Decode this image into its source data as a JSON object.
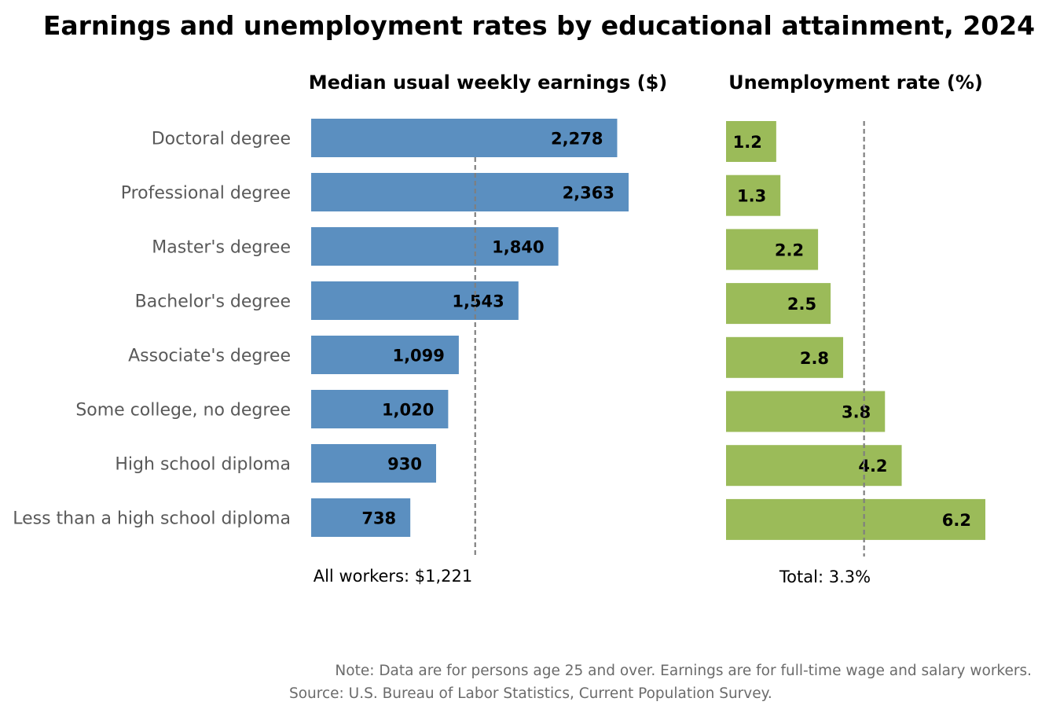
{
  "title": "Earnings and unemployment rates by educational attainment, 2024",
  "chart_data": [
    {
      "type": "bar",
      "orientation": "horizontal",
      "title": "Median usual weekly earnings ($)",
      "categories": [
        "Doctoral degree",
        "Professional degree",
        "Master's degree",
        "Bachelor's degree",
        "Associate's degree",
        "Some college, no degree",
        "High school diploma",
        "Less than a high school diploma"
      ],
      "values": [
        2278,
        2363,
        1840,
        1543,
        1099,
        1020,
        930,
        738
      ],
      "value_labels": [
        "2,278",
        "2,363",
        "1,840",
        "1,543",
        "1,099",
        "1,020",
        "930",
        "738"
      ],
      "reference": {
        "value": 1221,
        "label": "All workers: $1,221"
      },
      "xlim": [
        0,
        2363
      ],
      "grid": false,
      "color": "#5b8fc0"
    },
    {
      "type": "bar",
      "orientation": "horizontal",
      "title": "Unemployment rate (%)",
      "categories": [
        "Doctoral degree",
        "Professional degree",
        "Master's degree",
        "Bachelor's degree",
        "Associate's degree",
        "Some college, no degree",
        "High school diploma",
        "Less than a high school diploma"
      ],
      "values": [
        1.2,
        1.3,
        2.2,
        2.5,
        2.8,
        3.8,
        4.2,
        6.2
      ],
      "value_labels": [
        "1.2",
        "1.3",
        "2.2",
        "2.5",
        "2.8",
        "3.8",
        "4.2",
        "6.2"
      ],
      "reference": {
        "value": 3.3,
        "label": "Total: 3.3%"
      },
      "xlim": [
        0,
        6.2
      ],
      "grid": false,
      "color": "#9bbb59"
    }
  ],
  "notes": [
    "Note: Data are for persons age 25 and over. Earnings are for full-time wage and salary workers.",
    "Source: U.S. Bureau of Labor Statistics, Current Population Survey."
  ]
}
